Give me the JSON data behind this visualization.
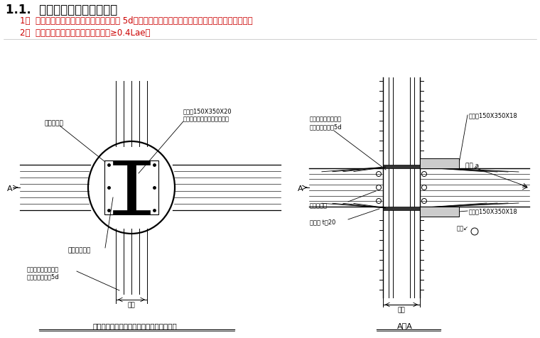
{
  "title1": "1.1.  梁纵筋与型钢柱连接方法",
  "item1": "1）  梁纵筋焊于钢牛腿、加劲肋上，双面焊 5d；当有双排筋时，第二排筋焊于钢牛腿或加劲肋下侧；",
  "item2": "2）  梁纵筋弯锚，满足水平段锚固长度≥0.4Lae。",
  "left_caption": "非转换层型钢圆柱与钢筋混凝土梁节点详图",
  "right_caption": "A－A",
  "lbl_col_stirrup": "柱纵筋箍筋",
  "lbl_steel_haunch_left": "钢牛腿150X350X20\n设置支撑筋、现浇后取出位置",
  "lbl_steel_flange": "型钢钢柱翼板",
  "lbl_weld_left": "双面焊接于钢牛腿上\n焊接长度不小于5d",
  "lbl_beam_width": "梁宽",
  "lbl_col_width": "柱宽",
  "lbl_weld_right_top": "双面焊接于钢牛腿上\n焊接长度不小于5d",
  "lbl_rebar_hole": "钻筋套管孔",
  "lbl_stiffener": "加劲肋 t＝20",
  "lbl_haunch_tr": "钢牛腿150X350X18",
  "lbl_haunch_br": "钢牛腿150X350X18",
  "lbl_same_a_top": "余同 a",
  "lbl_same_a_bot": "余同↙",
  "red_color": "#cc0000"
}
